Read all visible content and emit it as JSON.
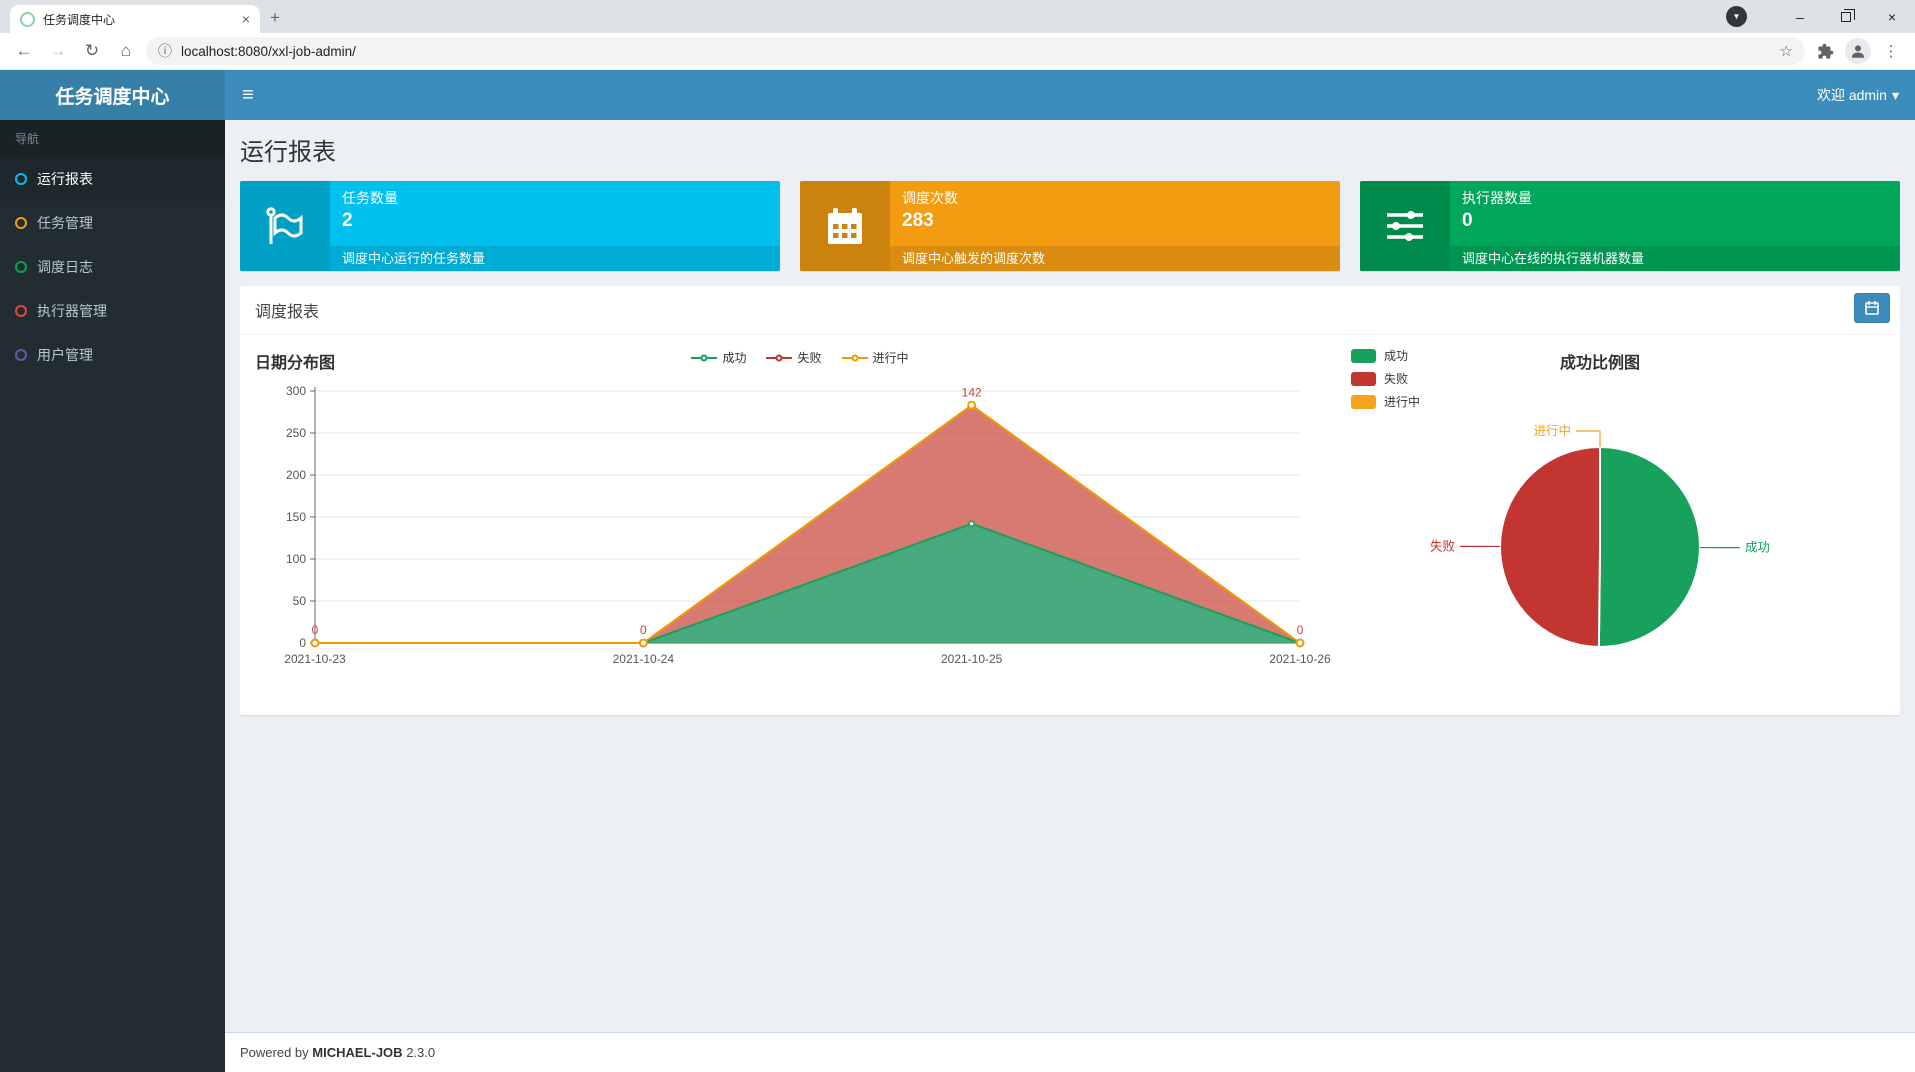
{
  "browser": {
    "tab": {
      "title": "任务调度中心"
    },
    "address": {
      "url": "localhost:8080/xxl-job-admin/"
    },
    "icons": {
      "back": "←",
      "forward": "→",
      "reload": "↻",
      "home": "⌂",
      "info": "ⓘ",
      "star": "☆",
      "dots": "⋮",
      "close": "×",
      "new_tab": "+",
      "minimize": "–",
      "download_caret": "▼"
    }
  },
  "header": {
    "logo": "任务调度中心",
    "welcome": "欢迎 admin",
    "caret": "▾",
    "menu_icon": "≡"
  },
  "sidebar": {
    "section_label": "导航",
    "items": [
      {
        "label": "运行报表",
        "color": "#00c0ef",
        "active": true
      },
      {
        "label": "任务管理",
        "color": "#f39c12",
        "active": false
      },
      {
        "label": "调度日志",
        "color": "#00a65a",
        "active": false
      },
      {
        "label": "执行器管理",
        "color": "#dd4b39",
        "active": false
      },
      {
        "label": "用户管理",
        "color": "#605ca8",
        "active": false
      }
    ]
  },
  "page": {
    "title": "运行报表"
  },
  "stat_cards": [
    {
      "label": "任务数量",
      "value": "2",
      "desc": "调度中心运行的任务数量",
      "color": "cyan",
      "icon": "flag-icon"
    },
    {
      "label": "调度次数",
      "value": "283",
      "desc": "调度中心触发的调度次数",
      "color": "orange",
      "icon": "calendar-icon"
    },
    {
      "label": "执行器数量",
      "value": "0",
      "desc": "调度中心在线的执行器机器数量",
      "color": "green",
      "icon": "sliders-icon"
    }
  ],
  "panel": {
    "title": "调度报表"
  },
  "chart_data": [
    {
      "type": "area",
      "title": "日期分布图",
      "x": [
        "2021-10-23",
        "2021-10-24",
        "2021-10-25",
        "2021-10-26"
      ],
      "series": [
        {
          "name": "成功",
          "color": "#18a05d",
          "fill": "#35a171",
          "fill_opacity": 0.9,
          "values": [
            0,
            0,
            142,
            0
          ]
        },
        {
          "name": "失败",
          "color": "#c23531",
          "fill": "#c94f43",
          "fill_opacity": 0.75,
          "values": [
            0,
            0,
            141,
            0
          ]
        },
        {
          "name": "进行中",
          "color": "#f39801",
          "fill": "none",
          "fill_opacity": 0,
          "values": [
            0,
            0,
            0,
            0
          ]
        }
      ],
      "stacked": true,
      "point_labels": [
        "0",
        "0",
        "142",
        "0"
      ],
      "label_color": "#cf4335",
      "ylim": [
        0,
        300
      ],
      "yticks": [
        0,
        50,
        100,
        150,
        200,
        250,
        300
      ],
      "grid": true,
      "legend_position": "top-center"
    },
    {
      "type": "pie",
      "title": "成功比例图",
      "slices": [
        {
          "name": "成功",
          "value": 142,
          "color": "#18a05d"
        },
        {
          "name": "失败",
          "value": 141,
          "color": "#c23531"
        },
        {
          "name": "进行中",
          "value": 0,
          "color": "#f5a31a"
        }
      ],
      "legend_position": "top-left"
    }
  ],
  "footer": {
    "prefix": "Powered by",
    "brand": "MICHAEL-JOB",
    "version": "2.3.0"
  }
}
